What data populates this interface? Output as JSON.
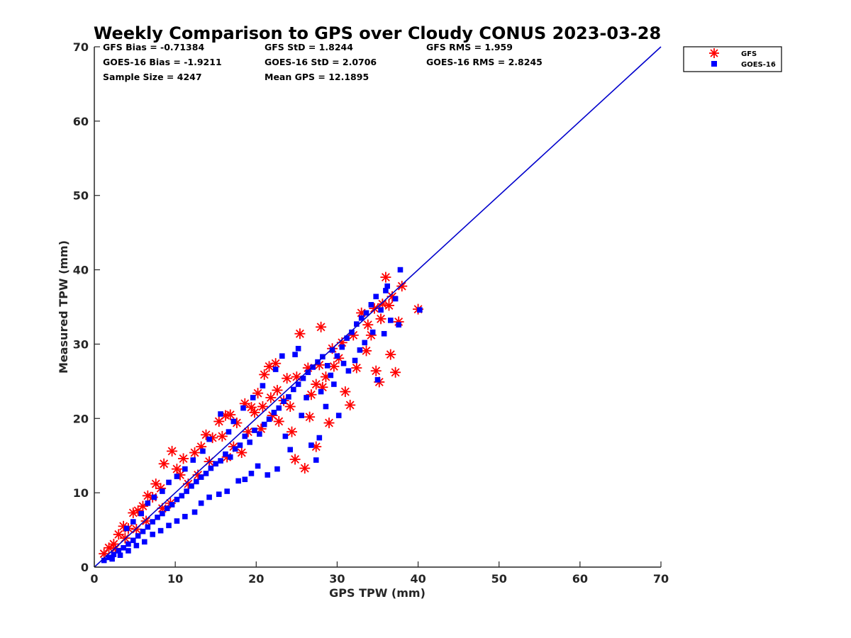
{
  "chart_data": {
    "type": "scatter",
    "title": "Weekly Comparison to GPS over Cloudy CONUS 2023-03-28",
    "xlabel": "GPS TPW (mm)",
    "ylabel": "Measured TPW (mm)",
    "xlim": [
      0,
      70
    ],
    "ylim": [
      0,
      70
    ],
    "xticks": [
      "0",
      "10",
      "20",
      "30",
      "40",
      "50",
      "60",
      "70"
    ],
    "yticks": [
      "0",
      "10",
      "20",
      "30",
      "40",
      "50",
      "60",
      "70"
    ],
    "grid": false,
    "legend_position": "top-right-outside",
    "stats": [
      [
        "GFS Bias = -0.71384",
        "GFS StD = 1.8244",
        "GFS RMS = 1.959"
      ],
      [
        "GOES-16 Bias = -1.9211",
        "GOES-16 StD = 2.0706",
        "GOES-16 RMS = 2.8245"
      ],
      [
        "Sample Size = 4247",
        "Mean GPS = 12.1895"
      ]
    ],
    "reference_line": {
      "x": [
        0,
        70
      ],
      "y": [
        0,
        70
      ],
      "color": "#0000cc"
    },
    "series": [
      {
        "name": "GFS",
        "marker": "asterisk",
        "color": "#ff0000",
        "points": [
          [
            1.2,
            1.8
          ],
          [
            1.8,
            2.6
          ],
          [
            2.4,
            3.1
          ],
          [
            3,
            4.4
          ],
          [
            3.6,
            5.5
          ],
          [
            4.2,
            5.2
          ],
          [
            4.8,
            7.3
          ],
          [
            5.4,
            7.6
          ],
          [
            6,
            8.2
          ],
          [
            6.6,
            9.6
          ],
          [
            7.2,
            9.4
          ],
          [
            7.6,
            11.2
          ],
          [
            8.2,
            10.6
          ],
          [
            8.6,
            13.9
          ],
          [
            9.6,
            15.6
          ],
          [
            10.2,
            13.2
          ],
          [
            11,
            14.6
          ],
          [
            12.4,
            15.4
          ],
          [
            13.8,
            17.8
          ],
          [
            14.6,
            17.4
          ],
          [
            15.4,
            19.6
          ],
          [
            16.2,
            20.4
          ],
          [
            16.8,
            20.5
          ],
          [
            17.6,
            19.4
          ],
          [
            18.6,
            22
          ],
          [
            19.4,
            21.5
          ],
          [
            20.2,
            23.4
          ],
          [
            21,
            25.9
          ],
          [
            21.6,
            27
          ],
          [
            22.4,
            27.4
          ],
          [
            22.8,
            19.6
          ],
          [
            23.4,
            22.4
          ],
          [
            24.4,
            18.2
          ],
          [
            24.8,
            14.5
          ],
          [
            25.4,
            31.4
          ],
          [
            26,
            13.3
          ],
          [
            26.6,
            20.2
          ],
          [
            27.4,
            24.6
          ],
          [
            28,
            32.3
          ],
          [
            28.6,
            25.6
          ],
          [
            29,
            19.4
          ],
          [
            29.6,
            27
          ],
          [
            30.2,
            28.1
          ],
          [
            31,
            23.6
          ],
          [
            31.6,
            21.8
          ],
          [
            32.4,
            26.8
          ],
          [
            33,
            34.2
          ],
          [
            33.6,
            29.1
          ],
          [
            34.2,
            31.2
          ],
          [
            34.8,
            26.4
          ],
          [
            35.2,
            24.9
          ],
          [
            35.6,
            35.4
          ],
          [
            36,
            39
          ],
          [
            36.6,
            28.6
          ],
          [
            37.2,
            26.2
          ],
          [
            37.6,
            33
          ],
          [
            38,
            37.8
          ],
          [
            40,
            34.7
          ],
          [
            27.4,
            16.2
          ],
          [
            29.4,
            29.4
          ],
          [
            12.8,
            12.4
          ],
          [
            11.6,
            11.2
          ],
          [
            9.4,
            8.6
          ],
          [
            8.4,
            7.9
          ],
          [
            6.4,
            6.2
          ],
          [
            5.2,
            5.1
          ],
          [
            3.8,
            3.9
          ],
          [
            2.6,
            2.5
          ],
          [
            13.2,
            16.2
          ],
          [
            10.6,
            12.4
          ],
          [
            17.2,
            16.2
          ],
          [
            18.2,
            15.4
          ],
          [
            19.8,
            20.8
          ],
          [
            20.6,
            18.6
          ],
          [
            21.8,
            22.8
          ],
          [
            22.6,
            23.8
          ],
          [
            23.8,
            25.4
          ],
          [
            25,
            25.6
          ],
          [
            26.4,
            26.8
          ],
          [
            27.8,
            27.2
          ],
          [
            28.2,
            24.2
          ],
          [
            30.6,
            30.2
          ],
          [
            32,
            31.2
          ],
          [
            33.8,
            32.6
          ],
          [
            34.6,
            34.8
          ],
          [
            35.4,
            33.4
          ],
          [
            36.4,
            35.2
          ],
          [
            36.8,
            36.4
          ],
          [
            24.2,
            21.6
          ],
          [
            26.8,
            23.2
          ],
          [
            15.8,
            17.6
          ],
          [
            14.2,
            14.2
          ],
          [
            16.4,
            14.8
          ],
          [
            19,
            18.2
          ],
          [
            20.8,
            21.6
          ],
          [
            22,
            20.4
          ]
        ]
      },
      {
        "name": "GOES-16",
        "marker": "square",
        "color": "#0000ff",
        "points": [
          [
            1.2,
            0.9
          ],
          [
            1.8,
            1.3
          ],
          [
            2.4,
            1.7
          ],
          [
            3,
            2.2
          ],
          [
            3.6,
            2.6
          ],
          [
            4.2,
            3.1
          ],
          [
            4.8,
            3.6
          ],
          [
            5.4,
            4.2
          ],
          [
            6,
            4.8
          ],
          [
            6.6,
            5.4
          ],
          [
            7.2,
            6.1
          ],
          [
            7.8,
            6.7
          ],
          [
            8.4,
            7.2
          ],
          [
            9,
            7.9
          ],
          [
            9.6,
            8.4
          ],
          [
            10.2,
            9.1
          ],
          [
            10.8,
            9.6
          ],
          [
            11.4,
            10.2
          ],
          [
            12,
            10.9
          ],
          [
            12.6,
            11.5
          ],
          [
            13.2,
            12.1
          ],
          [
            13.8,
            12.6
          ],
          [
            14.4,
            13.3
          ],
          [
            15,
            13.9
          ],
          [
            15.6,
            14.3
          ],
          [
            16.2,
            15.2
          ],
          [
            16.8,
            14.8
          ],
          [
            17.4,
            15.9
          ],
          [
            18,
            16.4
          ],
          [
            18.6,
            17.6
          ],
          [
            19.2,
            16.8
          ],
          [
            19.8,
            18.4
          ],
          [
            20.4,
            17.9
          ],
          [
            21,
            19.2
          ],
          [
            21.6,
            19.9
          ],
          [
            22.2,
            20.8
          ],
          [
            22.8,
            21.4
          ],
          [
            23.4,
            22.3
          ],
          [
            24,
            22.9
          ],
          [
            24.6,
            23.9
          ],
          [
            25.2,
            24.6
          ],
          [
            25.8,
            25.4
          ],
          [
            26.4,
            26.2
          ],
          [
            27,
            26.9
          ],
          [
            27.6,
            27.6
          ],
          [
            28.2,
            28.3
          ],
          [
            28.8,
            27.1
          ],
          [
            29.4,
            29.2
          ],
          [
            30,
            28.4
          ],
          [
            30.6,
            29.6
          ],
          [
            31.2,
            30.8
          ],
          [
            31.8,
            31.6
          ],
          [
            32.4,
            32.7
          ],
          [
            33,
            33.5
          ],
          [
            33.6,
            34.2
          ],
          [
            34.2,
            35.3
          ],
          [
            34.8,
            36.4
          ],
          [
            35.4,
            34.6
          ],
          [
            36,
            37.2
          ],
          [
            36.6,
            33.2
          ],
          [
            37.2,
            36.1
          ],
          [
            37.8,
            40
          ],
          [
            40.2,
            34.6
          ],
          [
            35,
            25.2
          ],
          [
            34.4,
            31.6
          ],
          [
            32.8,
            29.2
          ],
          [
            31.4,
            26.4
          ],
          [
            29.6,
            24.6
          ],
          [
            27.8,
            17.4
          ],
          [
            27.4,
            14.4
          ],
          [
            26.8,
            16.4
          ],
          [
            25.6,
            20.4
          ],
          [
            24.2,
            15.8
          ],
          [
            23.6,
            17.6
          ],
          [
            22.6,
            13.2
          ],
          [
            21.4,
            12.4
          ],
          [
            20.2,
            13.6
          ],
          [
            19.4,
            12.6
          ],
          [
            18.6,
            11.8
          ],
          [
            17.8,
            11.6
          ],
          [
            16.4,
            10.2
          ],
          [
            15.4,
            9.8
          ],
          [
            14.2,
            9.4
          ],
          [
            13.2,
            8.6
          ],
          [
            12.4,
            7.4
          ],
          [
            11.2,
            6.8
          ],
          [
            10.2,
            6.2
          ],
          [
            9.2,
            5.6
          ],
          [
            8.2,
            4.9
          ],
          [
            7.2,
            4.4
          ],
          [
            6.2,
            3.4
          ],
          [
            5.2,
            2.9
          ],
          [
            4.2,
            2.2
          ],
          [
            3.2,
            1.6
          ],
          [
            2.2,
            1.1
          ],
          [
            15.6,
            20.6
          ],
          [
            14.2,
            17.2
          ],
          [
            13.4,
            15.6
          ],
          [
            12.2,
            14.4
          ],
          [
            11.2,
            13.2
          ],
          [
            10.2,
            12.2
          ],
          [
            9.2,
            11.4
          ],
          [
            8.4,
            10.2
          ],
          [
            7.4,
            9.4
          ],
          [
            6.6,
            8.6
          ],
          [
            5.8,
            7.2
          ],
          [
            4.8,
            6.1
          ],
          [
            4,
            5.2
          ],
          [
            30.2,
            20.4
          ],
          [
            28.6,
            21.6
          ],
          [
            24.8,
            28.6
          ],
          [
            25.2,
            29.4
          ],
          [
            23.2,
            28.4
          ],
          [
            22.4,
            26.6
          ],
          [
            20.8,
            24.4
          ],
          [
            19.6,
            22.8
          ],
          [
            18.4,
            21.4
          ],
          [
            17.2,
            19.6
          ],
          [
            16.6,
            18.2
          ],
          [
            36.2,
            37.8
          ],
          [
            37.6,
            32.6
          ],
          [
            35.8,
            31.4
          ],
          [
            33.4,
            30.2
          ],
          [
            32.2,
            27.8
          ],
          [
            30.8,
            27.4
          ],
          [
            29.2,
            25.8
          ],
          [
            28,
            23.6
          ],
          [
            26.2,
            22.8
          ]
        ]
      }
    ]
  }
}
